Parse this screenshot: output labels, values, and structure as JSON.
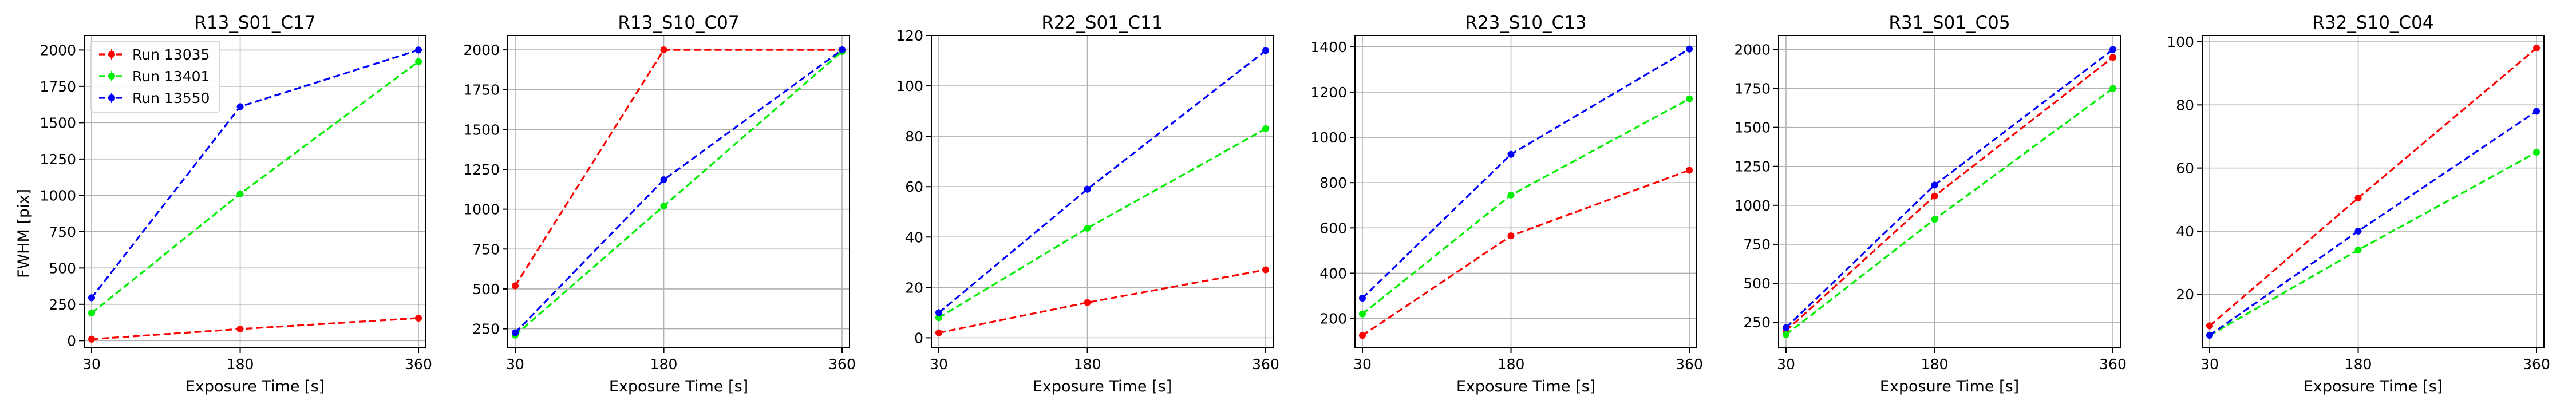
{
  "figure": {
    "ylabel": "FWHM [pix]",
    "xlabel": "Exposure Time [s]",
    "legend": [
      "Run 13035",
      "Run 13401",
      "Run 13550"
    ],
    "legend_placement": "upper-left"
  },
  "colors": {
    "series": [
      "#ff0000",
      "#00ee00",
      "#0000ff"
    ],
    "grid": "#b0b0b0"
  },
  "chart_data": [
    {
      "type": "line",
      "title": "R13_S01_C17",
      "x": [
        30,
        180,
        360
      ],
      "xticks": [
        "30",
        "180",
        "360"
      ],
      "yticks": [
        0,
        250,
        500,
        750,
        1000,
        1250,
        1500,
        1750,
        2000
      ],
      "ylim": [
        -50,
        2100
      ],
      "grid": true,
      "series": [
        {
          "name": "Run 13035",
          "values": [
            10,
            80,
            155
          ]
        },
        {
          "name": "Run 13401",
          "values": [
            190,
            1010,
            1920
          ]
        },
        {
          "name": "Run 13550",
          "values": [
            295,
            1610,
            2000
          ]
        }
      ]
    },
    {
      "type": "line",
      "title": "R13_S10_C07",
      "x": [
        30,
        180,
        360
      ],
      "xticks": [
        "30",
        "180",
        "360"
      ],
      "yticks": [
        250,
        500,
        750,
        1000,
        1250,
        1500,
        1750,
        2000
      ],
      "ylim": [
        130,
        2090
      ],
      "grid": true,
      "series": [
        {
          "name": "Run 13035",
          "values": [
            520,
            2000,
            2000
          ]
        },
        {
          "name": "Run 13401",
          "values": [
            210,
            1020,
            1990
          ]
        },
        {
          "name": "Run 13550",
          "values": [
            225,
            1185,
            2000
          ]
        }
      ]
    },
    {
      "type": "line",
      "title": "R22_S01_C11",
      "x": [
        30,
        180,
        360
      ],
      "xticks": [
        "30",
        "180",
        "360"
      ],
      "yticks": [
        0,
        20,
        40,
        60,
        80,
        100,
        120
      ],
      "ylim": [
        -4,
        120
      ],
      "grid": true,
      "series": [
        {
          "name": "Run 13035",
          "values": [
            2,
            14,
            27
          ]
        },
        {
          "name": "Run 13401",
          "values": [
            8,
            43.5,
            83
          ]
        },
        {
          "name": "Run 13550",
          "values": [
            10,
            59,
            114
          ]
        }
      ]
    },
    {
      "type": "line",
      "title": "R23_S10_C13",
      "x": [
        30,
        180,
        360
      ],
      "xticks": [
        "30",
        "180",
        "360"
      ],
      "yticks": [
        200,
        400,
        600,
        800,
        1000,
        1200,
        1400
      ],
      "ylim": [
        70,
        1450
      ],
      "grid": true,
      "series": [
        {
          "name": "Run 13035",
          "values": [
            125,
            565,
            855
          ]
        },
        {
          "name": "Run 13401",
          "values": [
            220,
            745,
            1170
          ]
        },
        {
          "name": "Run 13550",
          "values": [
            290,
            925,
            1390
          ]
        }
      ]
    },
    {
      "type": "line",
      "title": "R31_S01_C05",
      "x": [
        30,
        180,
        360
      ],
      "xticks": [
        "30",
        "180",
        "360"
      ],
      "yticks": [
        250,
        500,
        750,
        1000,
        1250,
        1500,
        1750,
        2000
      ],
      "ylim": [
        85,
        2090
      ],
      "grid": true,
      "series": [
        {
          "name": "Run 13035",
          "values": [
            195,
            1060,
            1950
          ]
        },
        {
          "name": "Run 13401",
          "values": [
            170,
            910,
            1750
          ]
        },
        {
          "name": "Run 13550",
          "values": [
            215,
            1130,
            2000
          ]
        }
      ]
    },
    {
      "type": "line",
      "title": "R32_S10_C04",
      "x": [
        30,
        180,
        360
      ],
      "xticks": [
        "30",
        "180",
        "360"
      ],
      "yticks": [
        20,
        40,
        60,
        80,
        100
      ],
      "ylim": [
        3,
        102
      ],
      "grid": true,
      "series": [
        {
          "name": "Run 13035",
          "values": [
            10,
            50.5,
            98
          ]
        },
        {
          "name": "Run 13401",
          "values": [
            7,
            34,
            65
          ]
        },
        {
          "name": "Run 13550",
          "values": [
            7,
            40,
            78
          ]
        }
      ]
    }
  ]
}
